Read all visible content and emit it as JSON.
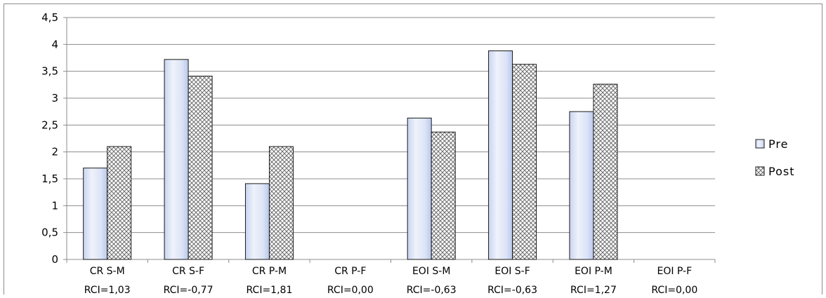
{
  "chart_data": {
    "type": "bar",
    "categories": [
      "CR S-M",
      "CR S-F",
      "CR P-M",
      "CR P-F",
      "EOI S-M",
      "EOI S-F",
      "EOI P-M",
      "EOI P-F"
    ],
    "category_sublabels": [
      "RCI=1,03",
      "RCI=-0,77",
      "RCI=1,81",
      "RCI=0,00",
      "RCI=-0,63",
      "RCI=-0,63",
      "RCI=1,27",
      "RCI=0,00"
    ],
    "series": [
      {
        "name": "Pre",
        "values": [
          1.7,
          3.72,
          1.41,
          0,
          2.63,
          3.88,
          2.75,
          0
        ]
      },
      {
        "name": "Post",
        "values": [
          2.1,
          3.41,
          2.1,
          0,
          2.37,
          3.63,
          3.26,
          0
        ]
      }
    ],
    "yticks": [
      "0",
      "0,5",
      "1",
      "1,5",
      "2",
      "2,5",
      "3",
      "3,5",
      "4",
      "4,5"
    ],
    "ylim": [
      0,
      4.5
    ],
    "grid": true,
    "legend_position": "right",
    "colors": {
      "pre_fill": "#dfe6f7",
      "pre_stroke": "#1a1a1a",
      "post_fill": "#ffffff",
      "post_hatch": "#6e6e6e",
      "grid": "#8c8c8c"
    }
  }
}
